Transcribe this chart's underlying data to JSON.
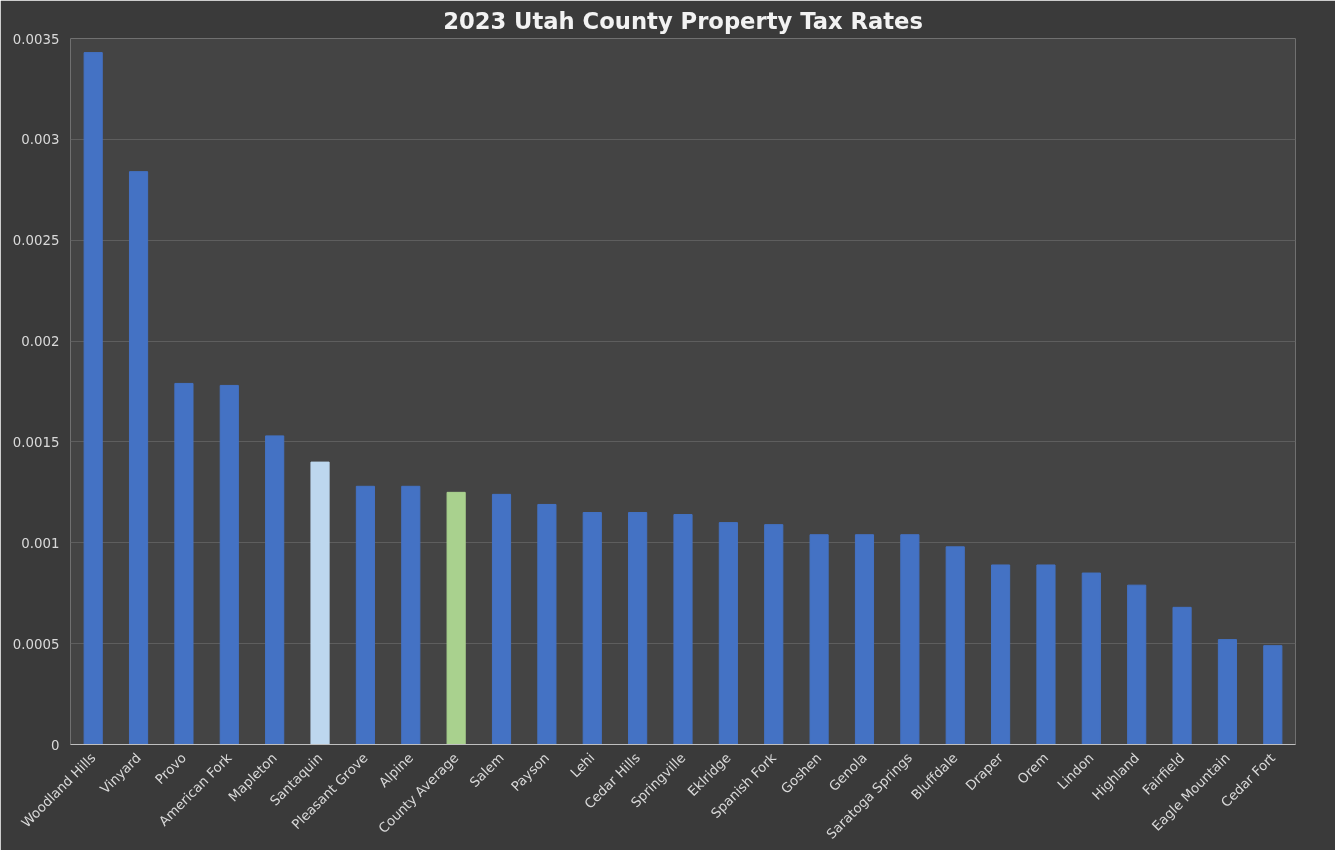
{
  "chart_data": {
    "type": "bar",
    "title": "2023 Utah County Property Tax Rates",
    "categories": [
      "Woodland Hills",
      "Vinyard",
      "Provo",
      "American Fork",
      "Mapleton",
      "Santaquin",
      "Pleasant Grove",
      "Alpine",
      "County Average",
      "Salem",
      "Payson",
      "Lehi",
      "Cedar Hills",
      "Springville",
      "Eklridge",
      "Spanish Fork",
      "Goshen",
      "Genola",
      "Saratoga Springs",
      "Bluffdale",
      "Draper",
      "Orem",
      "Lindon",
      "Highland",
      "Fairfield",
      "Eagle Mountain",
      "Cedar Fort"
    ],
    "values": [
      0.00343,
      0.00284,
      0.00179,
      0.00178,
      0.00153,
      0.0014,
      0.00128,
      0.00128,
      0.00125,
      0.00124,
      0.00119,
      0.00115,
      0.00115,
      0.00114,
      0.0011,
      0.00109,
      0.00104,
      0.00104,
      0.00104,
      0.00098,
      0.00089,
      0.00089,
      0.00085,
      0.00079,
      0.00068,
      0.00052,
      0.00049
    ],
    "colors": [
      "#4472c4",
      "#4472c4",
      "#4472c4",
      "#4472c4",
      "#4472c4",
      "#bdd7ee",
      "#4472c4",
      "#4472c4",
      "#a9d18e",
      "#4472c4",
      "#4472c4",
      "#4472c4",
      "#4472c4",
      "#4472c4",
      "#4472c4",
      "#4472c4",
      "#4472c4",
      "#4472c4",
      "#4472c4",
      "#4472c4",
      "#4472c4",
      "#4472c4",
      "#4472c4",
      "#4472c4",
      "#4472c4",
      "#4472c4",
      "#4472c4"
    ],
    "ylim": [
      0,
      0.0035
    ],
    "yticks": [
      0,
      0.0005,
      0.001,
      0.0015,
      0.002,
      0.0025,
      0.003,
      0.0035
    ],
    "grid": "y"
  }
}
